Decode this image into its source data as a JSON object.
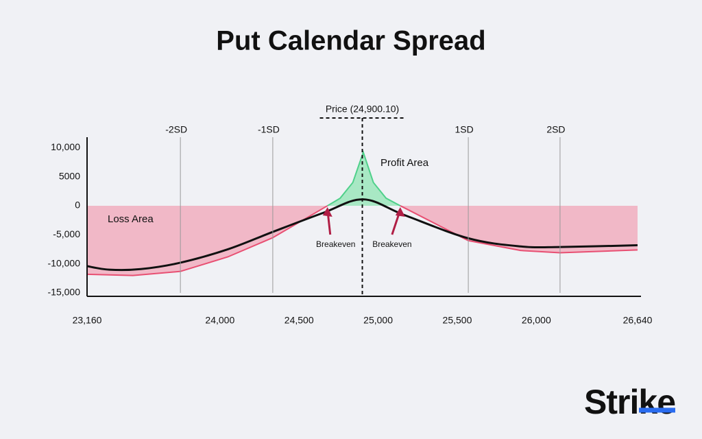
{
  "chart_data": {
    "type": "line",
    "title": "Put Calendar Spread",
    "brand": "Strike",
    "xlim": [
      23160,
      26640
    ],
    "xticks": [
      {
        "value": 23160,
        "label": "23,160"
      },
      {
        "value": 24000,
        "label": "24,000"
      },
      {
        "value": 24500,
        "label": "24,500"
      },
      {
        "value": 25000,
        "label": "25,000"
      },
      {
        "value": 25500,
        "label": "25,500"
      },
      {
        "value": 26000,
        "label": "26,000"
      },
      {
        "value": 26640,
        "label": "26,640"
      }
    ],
    "ylim": [
      -15000,
      11800
    ],
    "yticks": [
      {
        "value": 10000,
        "label": "10,000"
      },
      5000,
      0,
      {
        "value": -5000,
        "label": "-5,000"
      },
      {
        "value": -10000,
        "label": "-10,000"
      },
      {
        "value": -15000,
        "label": "-15,000"
      }
    ],
    "series": [
      {
        "name": "Loss Area",
        "type": "area",
        "color": "#e84f72",
        "fill": "#f1b8c7",
        "x": [
          23160,
          23450,
          23750,
          24050,
          24334,
          24680,
          24906,
          25140,
          25570,
          25900,
          26150,
          26640
        ],
        "values": [
          -11800,
          -12000,
          -11300,
          -8800,
          -5500,
          0,
          null,
          0,
          -6000,
          -7700,
          -8100,
          -7600
        ]
      },
      {
        "name": "Profit Area",
        "type": "area",
        "color": "#4fd08a",
        "fill": "#a8e8c4",
        "x": [
          24680,
          24760,
          24840,
          24906,
          24970,
          25050,
          25140
        ],
        "values": [
          0,
          1300,
          4000,
          9200,
          4000,
          1300,
          0
        ]
      },
      {
        "type": "line",
        "color": "#111111",
        "x": [
          23160,
          23300,
          23500,
          23750,
          24050,
          24334,
          24655,
          24906,
          25166,
          25570,
          25900,
          26150,
          26640
        ],
        "values": [
          -10400,
          -11000,
          -10900,
          -9800,
          -7500,
          -4500,
          -1200,
          1100,
          -1600,
          -5600,
          -7000,
          -7100,
          -6800
        ]
      }
    ],
    "vlines": [
      {
        "label": "-2SD",
        "x": 23750
      },
      {
        "label": "-1SD",
        "x": 24334
      },
      {
        "label": "1SD",
        "x": 25570
      },
      {
        "label": "2SD",
        "x": 26150
      }
    ],
    "price_line": {
      "label": "Price (24,900.10)",
      "x": 24900.1
    },
    "breakevens": [
      {
        "label": "Breakeven",
        "x": 24680
      },
      {
        "label": "Breakeven",
        "x": 25140
      }
    ]
  }
}
